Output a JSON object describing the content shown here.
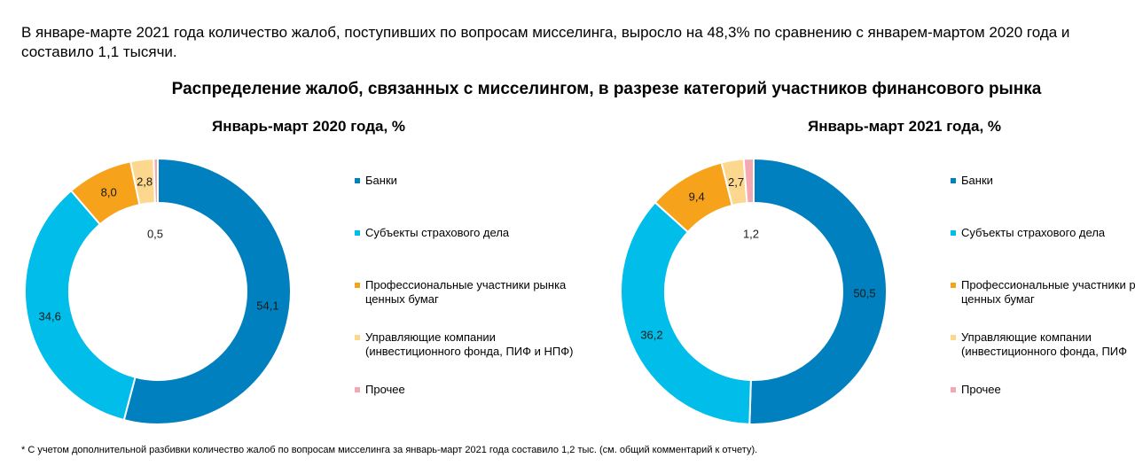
{
  "intro_text": "В январе-марте 2021 года количество жалоб, поступивших по вопросам мисселинга, выросло на 48,3% по сравнению с январем-мартом 2020 года и составило 1,1 тысячи.",
  "main_title": "Распределение жалоб, связанных с мисселингом, в разрезе категорий участников финансового рынка",
  "footnote": "* С учетом дополнительной разбивки количество жалоб по вопросам мисселинга за январь-март 2021 года составило 1,2 тыс. (см. общий комментарий к отчету).",
  "chart_data": [
    {
      "type": "pie",
      "style": "donut",
      "title": "Январь-март 2020 года, %",
      "categories": [
        "Банки",
        "Субъекты страхового дела",
        "Профессиональные участники рынка\nценных бумаг",
        "Управляющие компании\n(инвестиционного фонда, ПИФ и НПФ)",
        "Прочее"
      ],
      "values": [
        54.1,
        34.6,
        8.0,
        2.8,
        0.5
      ],
      "labels": [
        "54,1",
        "34,6",
        "8,0",
        "2,8",
        "0,5"
      ],
      "colors": [
        "#0080BF",
        "#00BDEA",
        "#F7A21B",
        "#FCD88E",
        "#F4A9B2"
      ],
      "legend_position": "right"
    },
    {
      "type": "pie",
      "style": "donut",
      "title": "Январь-март 2021 года, %",
      "categories": [
        "Банки",
        "Субъекты страхового дела",
        "Профессиональные участники р\nценных бумаг",
        "Управляющие компании\n(инвестиционного фонда, ПИФ",
        "Прочее"
      ],
      "values": [
        50.5,
        36.2,
        9.4,
        2.7,
        1.2
      ],
      "labels": [
        "50,5",
        "36,2",
        "9,4",
        "2,7",
        "1,2"
      ],
      "colors": [
        "#0080BF",
        "#00BDEA",
        "#F7A21B",
        "#FCD88E",
        "#F4A9B2"
      ],
      "legend_position": "right"
    }
  ]
}
